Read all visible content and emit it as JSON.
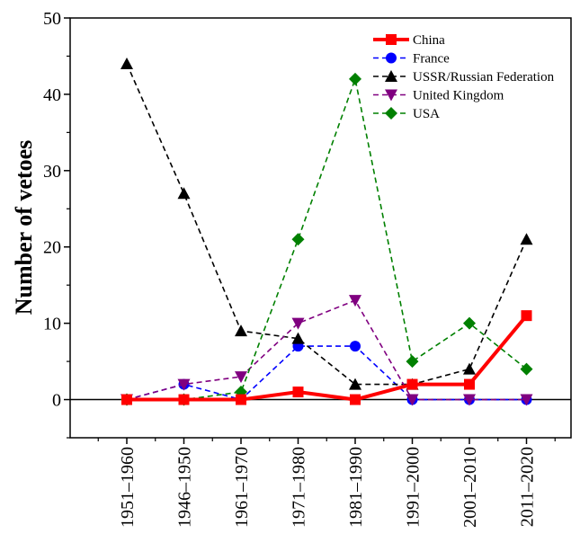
{
  "chart_data": {
    "type": "line",
    "title": "",
    "xlabel": "",
    "ylabel": "Number of vetoes",
    "ylim": [
      -5,
      50
    ],
    "yticks": [
      0,
      10,
      20,
      30,
      40,
      50
    ],
    "categories": [
      "1951–1960",
      "1946–1950",
      "1961–1970",
      "1971–1980",
      "1981–1990",
      "1991–2000",
      "2001–2010",
      "2011–2020"
    ],
    "grid": false,
    "legend_position": "top-right",
    "series": [
      {
        "name": "China",
        "color": "#ff0000",
        "marker": "square",
        "line_style": "solid",
        "values": [
          0,
          0,
          0,
          1,
          0,
          2,
          2,
          11
        ]
      },
      {
        "name": "France",
        "color": "#0000ff",
        "marker": "circle",
        "line_style": "dashed",
        "values": [
          0,
          2,
          0,
          7,
          7,
          0,
          0,
          0
        ]
      },
      {
        "name": "USSR/Russian Federation",
        "color": "#000000",
        "marker": "triangle-up",
        "line_style": "dashed",
        "values": [
          44,
          27,
          9,
          8,
          2,
          2,
          4,
          21
        ]
      },
      {
        "name": "United Kingdom",
        "color": "#800080",
        "marker": "triangle-down",
        "line_style": "dashed",
        "values": [
          0,
          2,
          3,
          10,
          13,
          0,
          0,
          0
        ]
      },
      {
        "name": "USA",
        "color": "#008000",
        "marker": "diamond",
        "line_style": "dashed",
        "values": [
          0,
          0,
          1,
          21,
          42,
          5,
          10,
          4
        ]
      }
    ]
  }
}
